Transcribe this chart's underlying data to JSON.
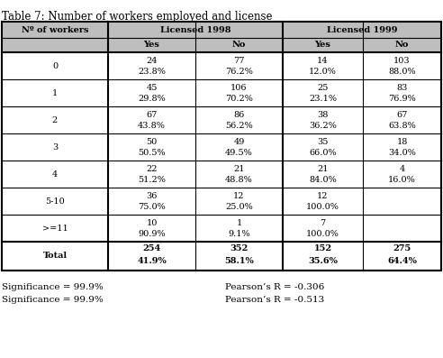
{
  "title": "Table 7: Number of workers employed and license",
  "rows": [
    {
      "label": "0",
      "vals": [
        "24",
        "77",
        "14",
        "103"
      ],
      "pcts": [
        "23.8%",
        "76.2%",
        "12.0%",
        "88.0%"
      ]
    },
    {
      "label": "1",
      "vals": [
        "45",
        "106",
        "25",
        "83"
      ],
      "pcts": [
        "29.8%",
        "70.2%",
        "23.1%",
        "76.9%"
      ]
    },
    {
      "label": "2",
      "vals": [
        "67",
        "86",
        "38",
        "67"
      ],
      "pcts": [
        "43.8%",
        "56.2%",
        "36.2%",
        "63.8%"
      ]
    },
    {
      "label": "3",
      "vals": [
        "50",
        "49",
        "35",
        "18"
      ],
      "pcts": [
        "50.5%",
        "49.5%",
        "66.0%",
        "34.0%"
      ]
    },
    {
      "label": "4",
      "vals": [
        "22",
        "21",
        "21",
        "4"
      ],
      "pcts": [
        "51.2%",
        "48.8%",
        "84.0%",
        "16.0%"
      ]
    },
    {
      "label": "5-10",
      "vals": [
        "36",
        "12",
        "12",
        ""
      ],
      "pcts": [
        "75.0%",
        "25.0%",
        "100.0%",
        ""
      ]
    },
    {
      "label": ">=11",
      "vals": [
        "10",
        "1",
        "7",
        ""
      ],
      "pcts": [
        "90.9%",
        "9.1%",
        "100.0%",
        ""
      ]
    }
  ],
  "total_row": {
    "label": "Total",
    "vals": [
      "254",
      "352",
      "152",
      "275"
    ],
    "pcts": [
      "41.9%",
      "58.1%",
      "35.6%",
      "64.4%"
    ]
  },
  "footnotes": [
    "Significance = 99.9%",
    "Significance = 99.9%"
  ],
  "pearson": [
    "Pearson’s R = -0.306",
    "Pearson’s R = -0.513"
  ],
  "bg_color": "#ffffff",
  "header_bg": "#bebebe",
  "text_color": "#000000",
  "font_size": 7.0,
  "title_font_size": 8.5,
  "footnote_font_size": 7.5
}
